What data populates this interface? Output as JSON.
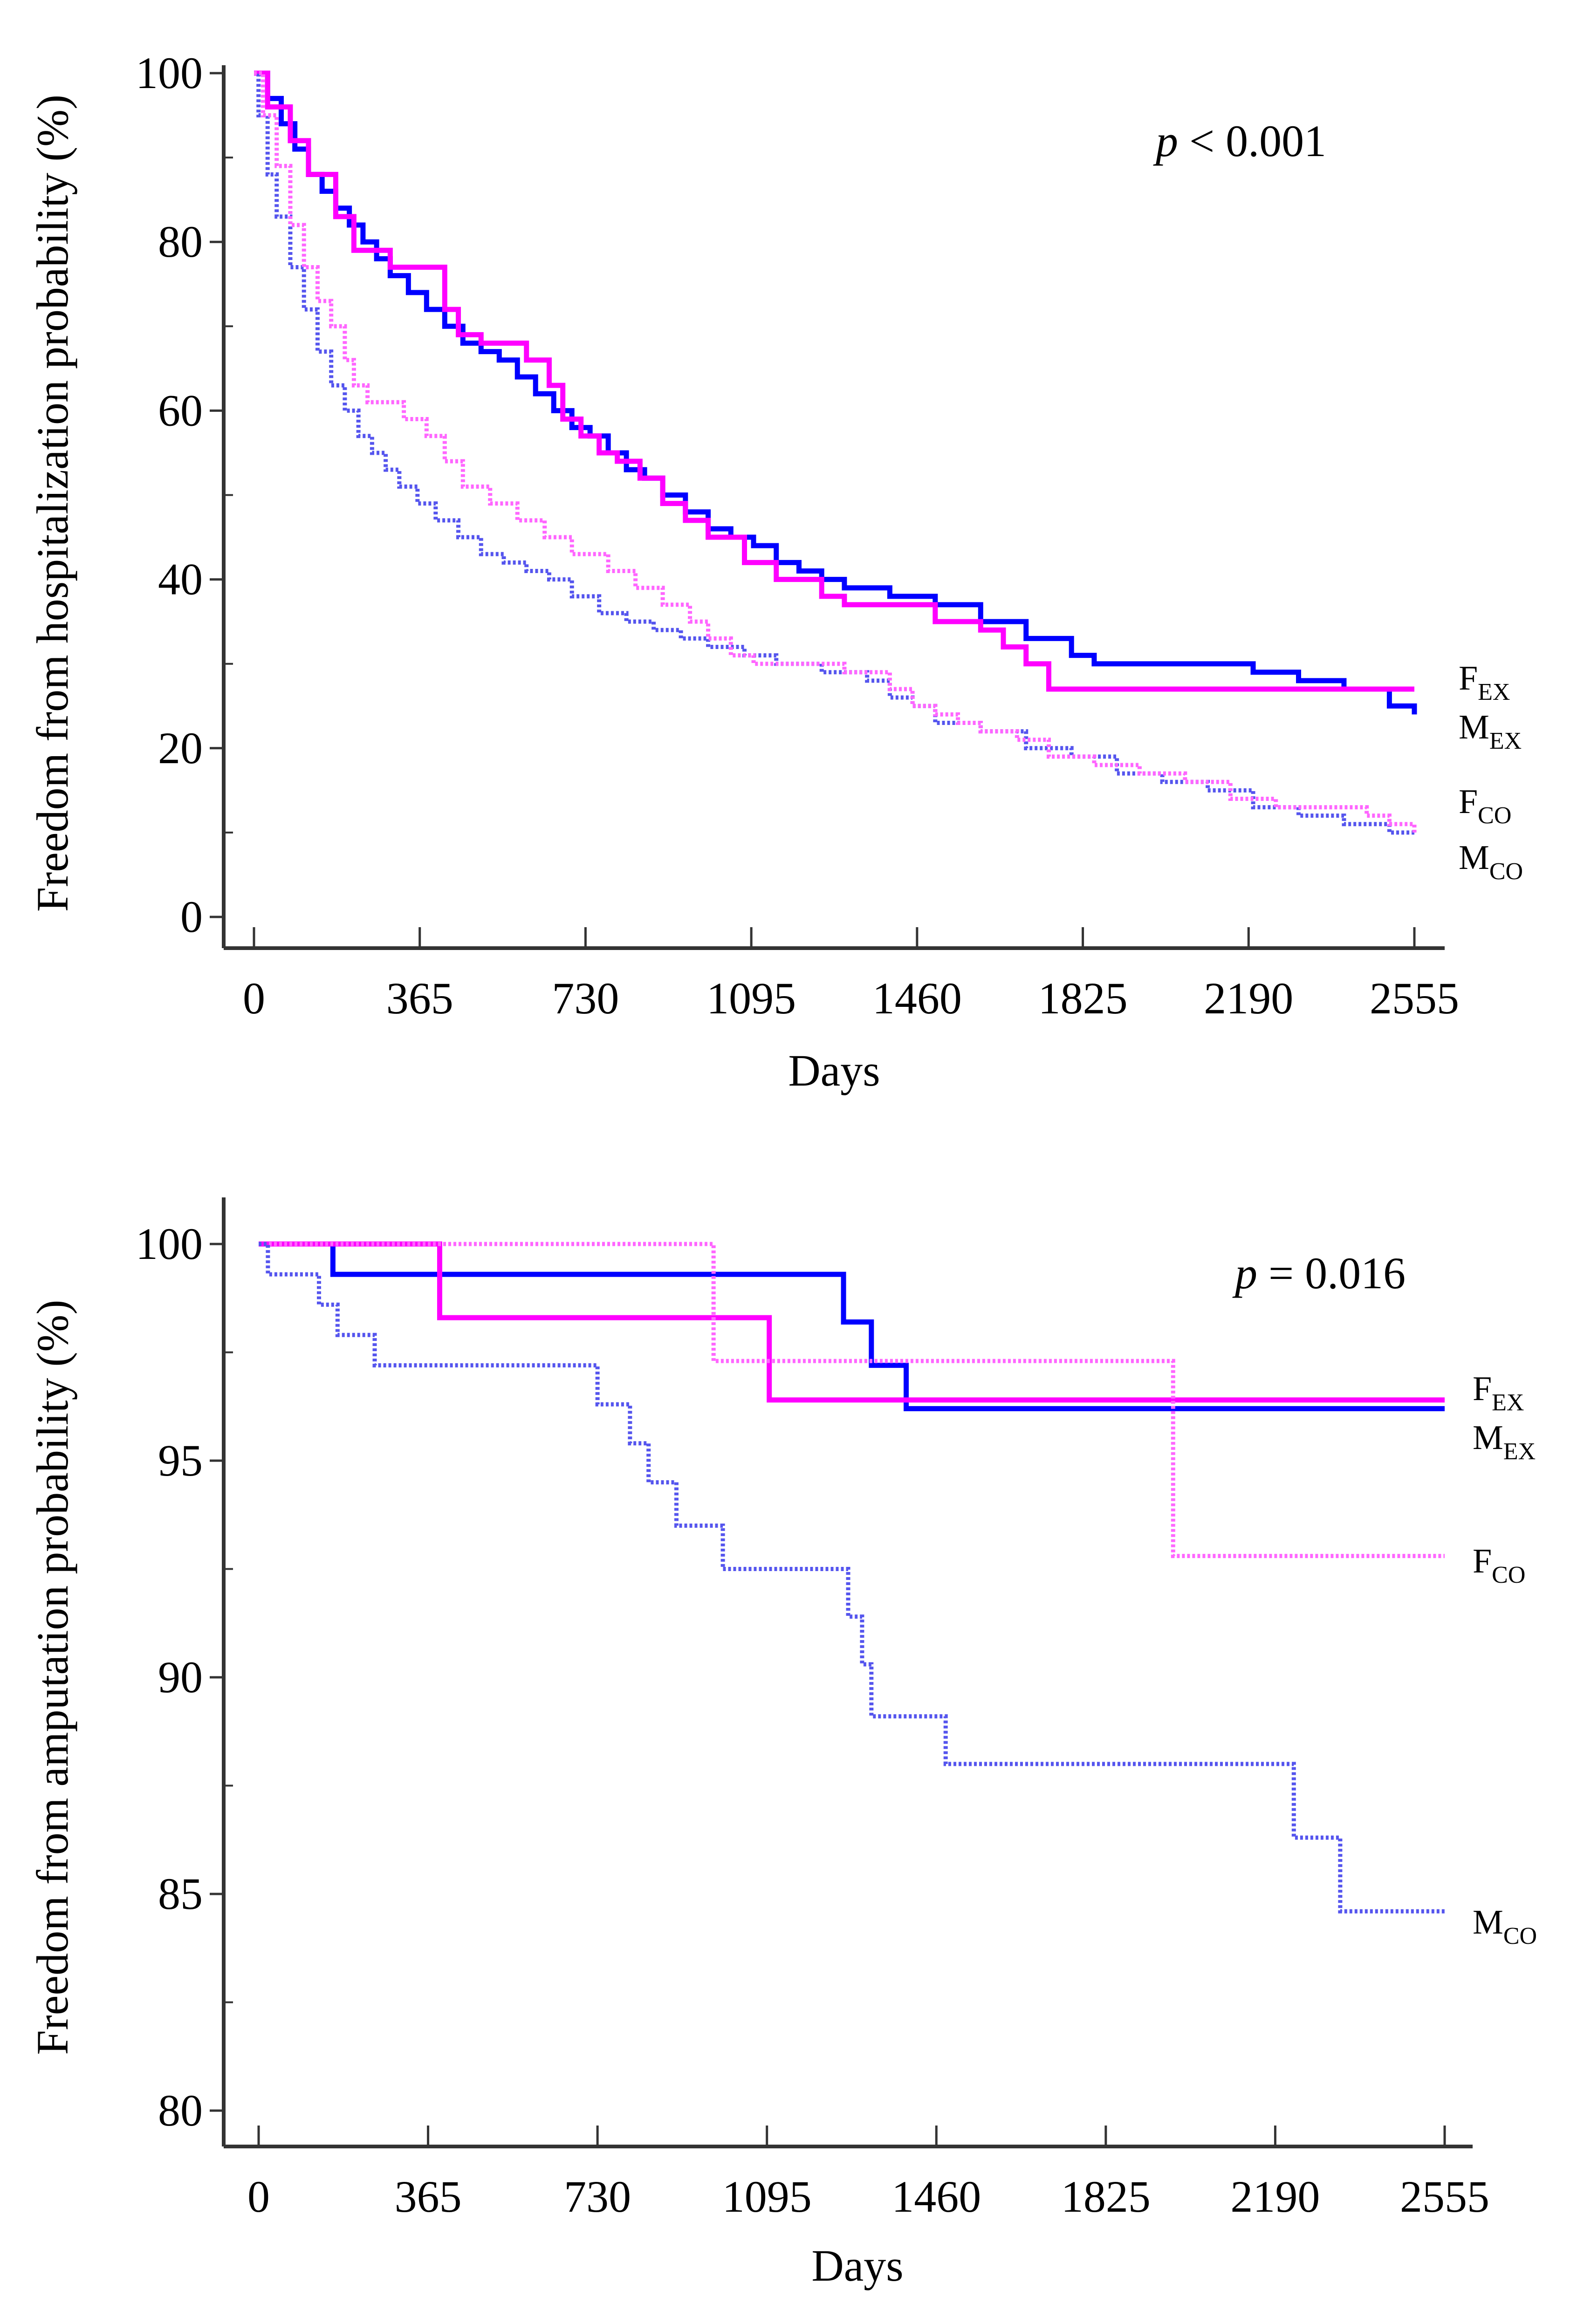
{
  "colors": {
    "ex_male": "#0000ff",
    "ex_female": "#ff00ff",
    "co_male": "#5555ee",
    "co_female": "#ff66ff",
    "axis": "#333333"
  },
  "chart_data": [
    {
      "type": "line",
      "subtype": "kaplan-meier-step",
      "title": "",
      "xlabel": "Days",
      "ylabel": "Freedom from hospitalization probability (%)",
      "xlim": [
        0,
        2555
      ],
      "ylim": [
        0,
        100
      ],
      "xticks": [
        0,
        365,
        730,
        1095,
        1460,
        1825,
        2190,
        2555
      ],
      "xtick_labels": [
        "0",
        "365",
        "730",
        "1095",
        "1460",
        "1825",
        "2190",
        "2555"
      ],
      "yticks": [
        0,
        20,
        40,
        60,
        80,
        100
      ],
      "ytick_labels": [
        "0",
        "20",
        "40",
        "60",
        "80",
        "100"
      ],
      "annotation": {
        "italic": "p",
        "text": " < 0.001"
      },
      "series": [
        {
          "name": "M_EX",
          "label_main": "M",
          "label_sub": "EX",
          "style": "solid",
          "color": "#0000ff",
          "x": [
            0,
            30,
            60,
            90,
            120,
            150,
            180,
            210,
            240,
            270,
            300,
            340,
            380,
            420,
            460,
            500,
            540,
            580,
            620,
            660,
            700,
            740,
            780,
            820,
            860,
            900,
            950,
            1000,
            1050,
            1100,
            1150,
            1200,
            1250,
            1300,
            1400,
            1500,
            1600,
            1700,
            1800,
            1850,
            2000,
            2200,
            2300,
            2400,
            2500,
            2555
          ],
          "values": [
            100,
            97,
            94,
            91,
            88,
            86,
            84,
            82,
            80,
            78,
            76,
            74,
            72,
            70,
            68,
            67,
            66,
            64,
            62,
            60,
            58,
            57,
            55,
            53,
            52,
            50,
            48,
            46,
            45,
            44,
            42,
            41,
            40,
            39,
            38,
            37,
            35,
            33,
            31,
            30,
            30,
            29,
            28,
            27,
            25,
            24
          ]
        },
        {
          "name": "F_EX",
          "label_main": "F",
          "label_sub": "EX",
          "style": "solid",
          "color": "#ff00ff",
          "x": [
            0,
            30,
            80,
            120,
            180,
            220,
            300,
            420,
            450,
            500,
            600,
            650,
            680,
            720,
            760,
            800,
            850,
            900,
            950,
            1000,
            1080,
            1150,
            1250,
            1300,
            1500,
            1600,
            1650,
            1700,
            1750,
            2555
          ],
          "values": [
            100,
            96,
            92,
            88,
            83,
            79,
            77,
            72,
            69,
            68,
            66,
            63,
            59,
            57,
            55,
            54,
            52,
            49,
            47,
            45,
            42,
            40,
            38,
            37,
            35,
            34,
            32,
            30,
            27,
            27
          ]
        },
        {
          "name": "M_CO",
          "label_main": "M",
          "label_sub": "CO",
          "style": "dotted",
          "color": "#5555ee",
          "x": [
            0,
            10,
            30,
            50,
            80,
            110,
            140,
            170,
            200,
            230,
            260,
            290,
            320,
            360,
            400,
            450,
            500,
            550,
            600,
            650,
            700,
            760,
            820,
            880,
            940,
            1000,
            1080,
            1150,
            1250,
            1350,
            1400,
            1450,
            1500,
            1600,
            1700,
            1800,
            1900,
            2000,
            2100,
            2200,
            2300,
            2400,
            2500,
            2555
          ],
          "values": [
            100,
            95,
            88,
            83,
            77,
            72,
            67,
            63,
            60,
            57,
            55,
            53,
            51,
            49,
            47,
            45,
            43,
            42,
            41,
            40,
            38,
            36,
            35,
            34,
            33,
            32,
            31,
            30,
            29,
            28,
            26,
            25,
            23,
            22,
            20,
            19,
            17,
            16,
            15,
            13,
            12,
            11,
            10,
            10
          ]
        },
        {
          "name": "F_CO",
          "label_main": "F",
          "label_sub": "CO",
          "style": "dotted",
          "color": "#ff66ff",
          "x": [
            0,
            20,
            50,
            80,
            110,
            140,
            170,
            200,
            220,
            250,
            330,
            380,
            420,
            460,
            520,
            580,
            640,
            700,
            780,
            840,
            900,
            960,
            1000,
            1050,
            1100,
            1200,
            1300,
            1400,
            1450,
            1500,
            1550,
            1600,
            1680,
            1750,
            1850,
            1950,
            2050,
            2150,
            2250,
            2350,
            2450,
            2500,
            2555
          ],
          "values": [
            100,
            95,
            89,
            82,
            77,
            73,
            70,
            66,
            63,
            61,
            59,
            57,
            54,
            51,
            49,
            47,
            45,
            43,
            41,
            39,
            37,
            35,
            33,
            31,
            30,
            30,
            29,
            27,
            25,
            24,
            23,
            22,
            21,
            19,
            18,
            17,
            16,
            14,
            13,
            13,
            12,
            11,
            10
          ]
        }
      ]
    },
    {
      "type": "line",
      "subtype": "kaplan-meier-step",
      "title": "",
      "xlabel": "Days",
      "ylabel": "Freedom from amputation probability (%)",
      "xlim": [
        0,
        2555
      ],
      "ylim": [
        80,
        100
      ],
      "xticks": [
        0,
        365,
        730,
        1095,
        1460,
        1825,
        2190,
        2555
      ],
      "xtick_labels": [
        "0",
        "365",
        "730",
        "1095",
        "1460",
        "1825",
        "2190",
        "2555"
      ],
      "yticks": [
        80,
        85,
        90,
        95,
        100
      ],
      "ytick_labels": [
        "80",
        "85",
        "90",
        "95",
        "100"
      ],
      "annotation": {
        "italic": "p",
        "text": " = 0.016"
      },
      "series": [
        {
          "name": "M_EX",
          "label_main": "M",
          "label_sub": "EX",
          "style": "solid",
          "color": "#0000ff",
          "x": [
            0,
            160,
            1260,
            1320,
            1395,
            2555
          ],
          "values": [
            100,
            99.3,
            98.2,
            97.2,
            96.2,
            96.2
          ]
        },
        {
          "name": "F_EX",
          "label_main": "F",
          "label_sub": "EX",
          "style": "solid",
          "color": "#ff00ff",
          "x": [
            0,
            390,
            1100,
            2555
          ],
          "values": [
            100,
            98.3,
            96.4,
            96.4
          ]
        },
        {
          "name": "F_CO",
          "label_main": "F",
          "label_sub": "CO",
          "style": "dotted",
          "color": "#ff66ff",
          "x": [
            0,
            980,
            1970,
            2555
          ],
          "values": [
            100,
            97.3,
            92.8,
            92.8
          ]
        },
        {
          "name": "M_CO",
          "label_main": "M",
          "label_sub": "CO",
          "style": "dotted",
          "color": "#5555ee",
          "x": [
            0,
            20,
            130,
            170,
            250,
            730,
            800,
            840,
            900,
            1000,
            1270,
            1300,
            1320,
            1480,
            2230,
            2330,
            2555
          ],
          "values": [
            100,
            99.3,
            98.6,
            97.9,
            97.2,
            96.3,
            95.4,
            94.5,
            93.5,
            92.5,
            91.4,
            90.3,
            89.1,
            88.0,
            86.3,
            84.6,
            84.6
          ]
        }
      ]
    }
  ]
}
